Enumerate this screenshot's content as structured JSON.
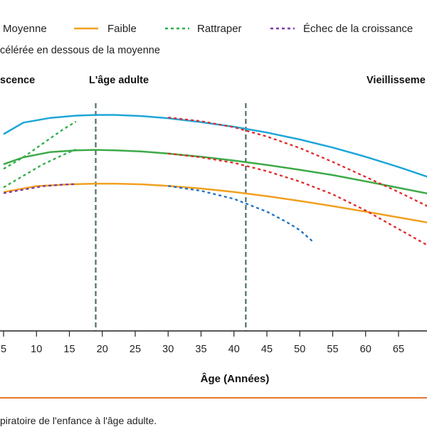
{
  "chart_data": {
    "type": "line",
    "legend": [
      {
        "label": "Moyenne",
        "style": "solid",
        "color": "#1ea6d8"
      },
      {
        "label": "Faible",
        "style": "solid",
        "color": "#f0a020"
      },
      {
        "label": "Rattraper",
        "style": "dotted",
        "color": "#2fae4a"
      },
      {
        "label": "Échec de la croissance",
        "style": "dotted",
        "color": "#7a3aa6"
      }
    ],
    "subtitle": "célérée en dessous de la moyenne",
    "phases": [
      "scence",
      "L'âge adulte",
      "Vieillisseme"
    ],
    "xlabel": "Âge (Années)",
    "xlim": [
      5,
      70
    ],
    "xticks": [
      5,
      10,
      15,
      20,
      25,
      30,
      35,
      40,
      45,
      50,
      55,
      60,
      65
    ],
    "ylim": [
      0,
      100
    ],
    "caption": "piratoire de l'enfance à l'âge adulte.",
    "vlines": [
      19,
      41.8
    ],
    "series": [
      {
        "name": "Moyenne",
        "color": "#1ea6d8",
        "style": "solid",
        "width": 2.5,
        "points": [
          [
            5,
            82
          ],
          [
            8,
            87
          ],
          [
            12,
            89
          ],
          [
            16,
            90
          ],
          [
            19,
            90.3
          ],
          [
            22,
            90.3
          ],
          [
            26,
            89.8
          ],
          [
            30,
            88.9
          ],
          [
            35,
            87.2
          ],
          [
            40,
            85.2
          ],
          [
            45,
            82.7
          ],
          [
            50,
            79.7
          ],
          [
            55,
            76.2
          ],
          [
            60,
            72.2
          ],
          [
            65,
            67.8
          ],
          [
            70,
            63
          ]
        ]
      },
      {
        "name": null,
        "color": "#3daa48",
        "style": "solid",
        "width": 2.5,
        "points": [
          [
            5,
            69
          ],
          [
            8,
            72
          ],
          [
            12,
            74.2
          ],
          [
            16,
            75
          ],
          [
            19,
            75.2
          ],
          [
            22,
            75
          ],
          [
            26,
            74.5
          ],
          [
            30,
            73.6
          ],
          [
            35,
            72.2
          ],
          [
            40,
            70.6
          ],
          [
            45,
            68.7
          ],
          [
            50,
            66.6
          ],
          [
            55,
            64.3
          ],
          [
            60,
            61.6
          ],
          [
            65,
            58.8
          ],
          [
            70,
            56
          ]
        ]
      },
      {
        "name": "Faible",
        "color": "#f0a020",
        "style": "solid",
        "width": 2.5,
        "points": [
          [
            5,
            57
          ],
          [
            10,
            59.5
          ],
          [
            15,
            60.3
          ],
          [
            19,
            60.6
          ],
          [
            22,
            60.6
          ],
          [
            26,
            60.3
          ],
          [
            30,
            59.6
          ],
          [
            35,
            58.5
          ],
          [
            40,
            57
          ],
          [
            45,
            55.2
          ],
          [
            50,
            53.1
          ],
          [
            55,
            50.9
          ],
          [
            60,
            48.5
          ],
          [
            65,
            46
          ],
          [
            70,
            43.5
          ]
        ]
      },
      {
        "name": null,
        "color": "#e02a2a",
        "style": "dotted",
        "width": 2.3,
        "points": [
          [
            30,
            89.2
          ],
          [
            35,
            87.6
          ],
          [
            40,
            85
          ],
          [
            45,
            81
          ],
          [
            50,
            76
          ],
          [
            55,
            70
          ],
          [
            60,
            63.5
          ],
          [
            65,
            57
          ],
          [
            70,
            50
          ]
        ]
      },
      {
        "name": null,
        "color": "#e02a2a",
        "style": "dotted",
        "width": 2.3,
        "points": [
          [
            30,
            73.6
          ],
          [
            35,
            72
          ],
          [
            40,
            69.6
          ],
          [
            45,
            66
          ],
          [
            50,
            61.5
          ],
          [
            55,
            56
          ],
          [
            60,
            49
          ],
          [
            65,
            41
          ],
          [
            70,
            33
          ]
        ]
      },
      {
        "name": null,
        "color": "#1e70c0",
        "style": "dotted",
        "width": 2.3,
        "points": [
          [
            30,
            59.6
          ],
          [
            35,
            57.5
          ],
          [
            40,
            54
          ],
          [
            45,
            48.5
          ],
          [
            48,
            44
          ],
          [
            50,
            40.5
          ],
          [
            52,
            35.5
          ]
        ]
      },
      {
        "name": null,
        "color": "#2fae4a",
        "style": "dotted",
        "width": 2.3,
        "points": [
          [
            5,
            67
          ],
          [
            8,
            72
          ],
          [
            11,
            78
          ],
          [
            14,
            84
          ],
          [
            16,
            87.4
          ]
        ]
      },
      {
        "name": null,
        "color": "#2fae4a",
        "style": "dotted",
        "width": 2.3,
        "points": [
          [
            5,
            59
          ],
          [
            8,
            64
          ],
          [
            11,
            69
          ],
          [
            14,
            73
          ],
          [
            16,
            75.4
          ]
        ]
      },
      {
        "name": null,
        "color": "#7a3aa6",
        "style": "dotted",
        "width": 2.3,
        "points": [
          [
            5,
            56.5
          ],
          [
            8,
            58
          ],
          [
            11,
            59.5
          ],
          [
            14,
            60.2
          ],
          [
            16,
            60.4
          ]
        ]
      }
    ]
  }
}
